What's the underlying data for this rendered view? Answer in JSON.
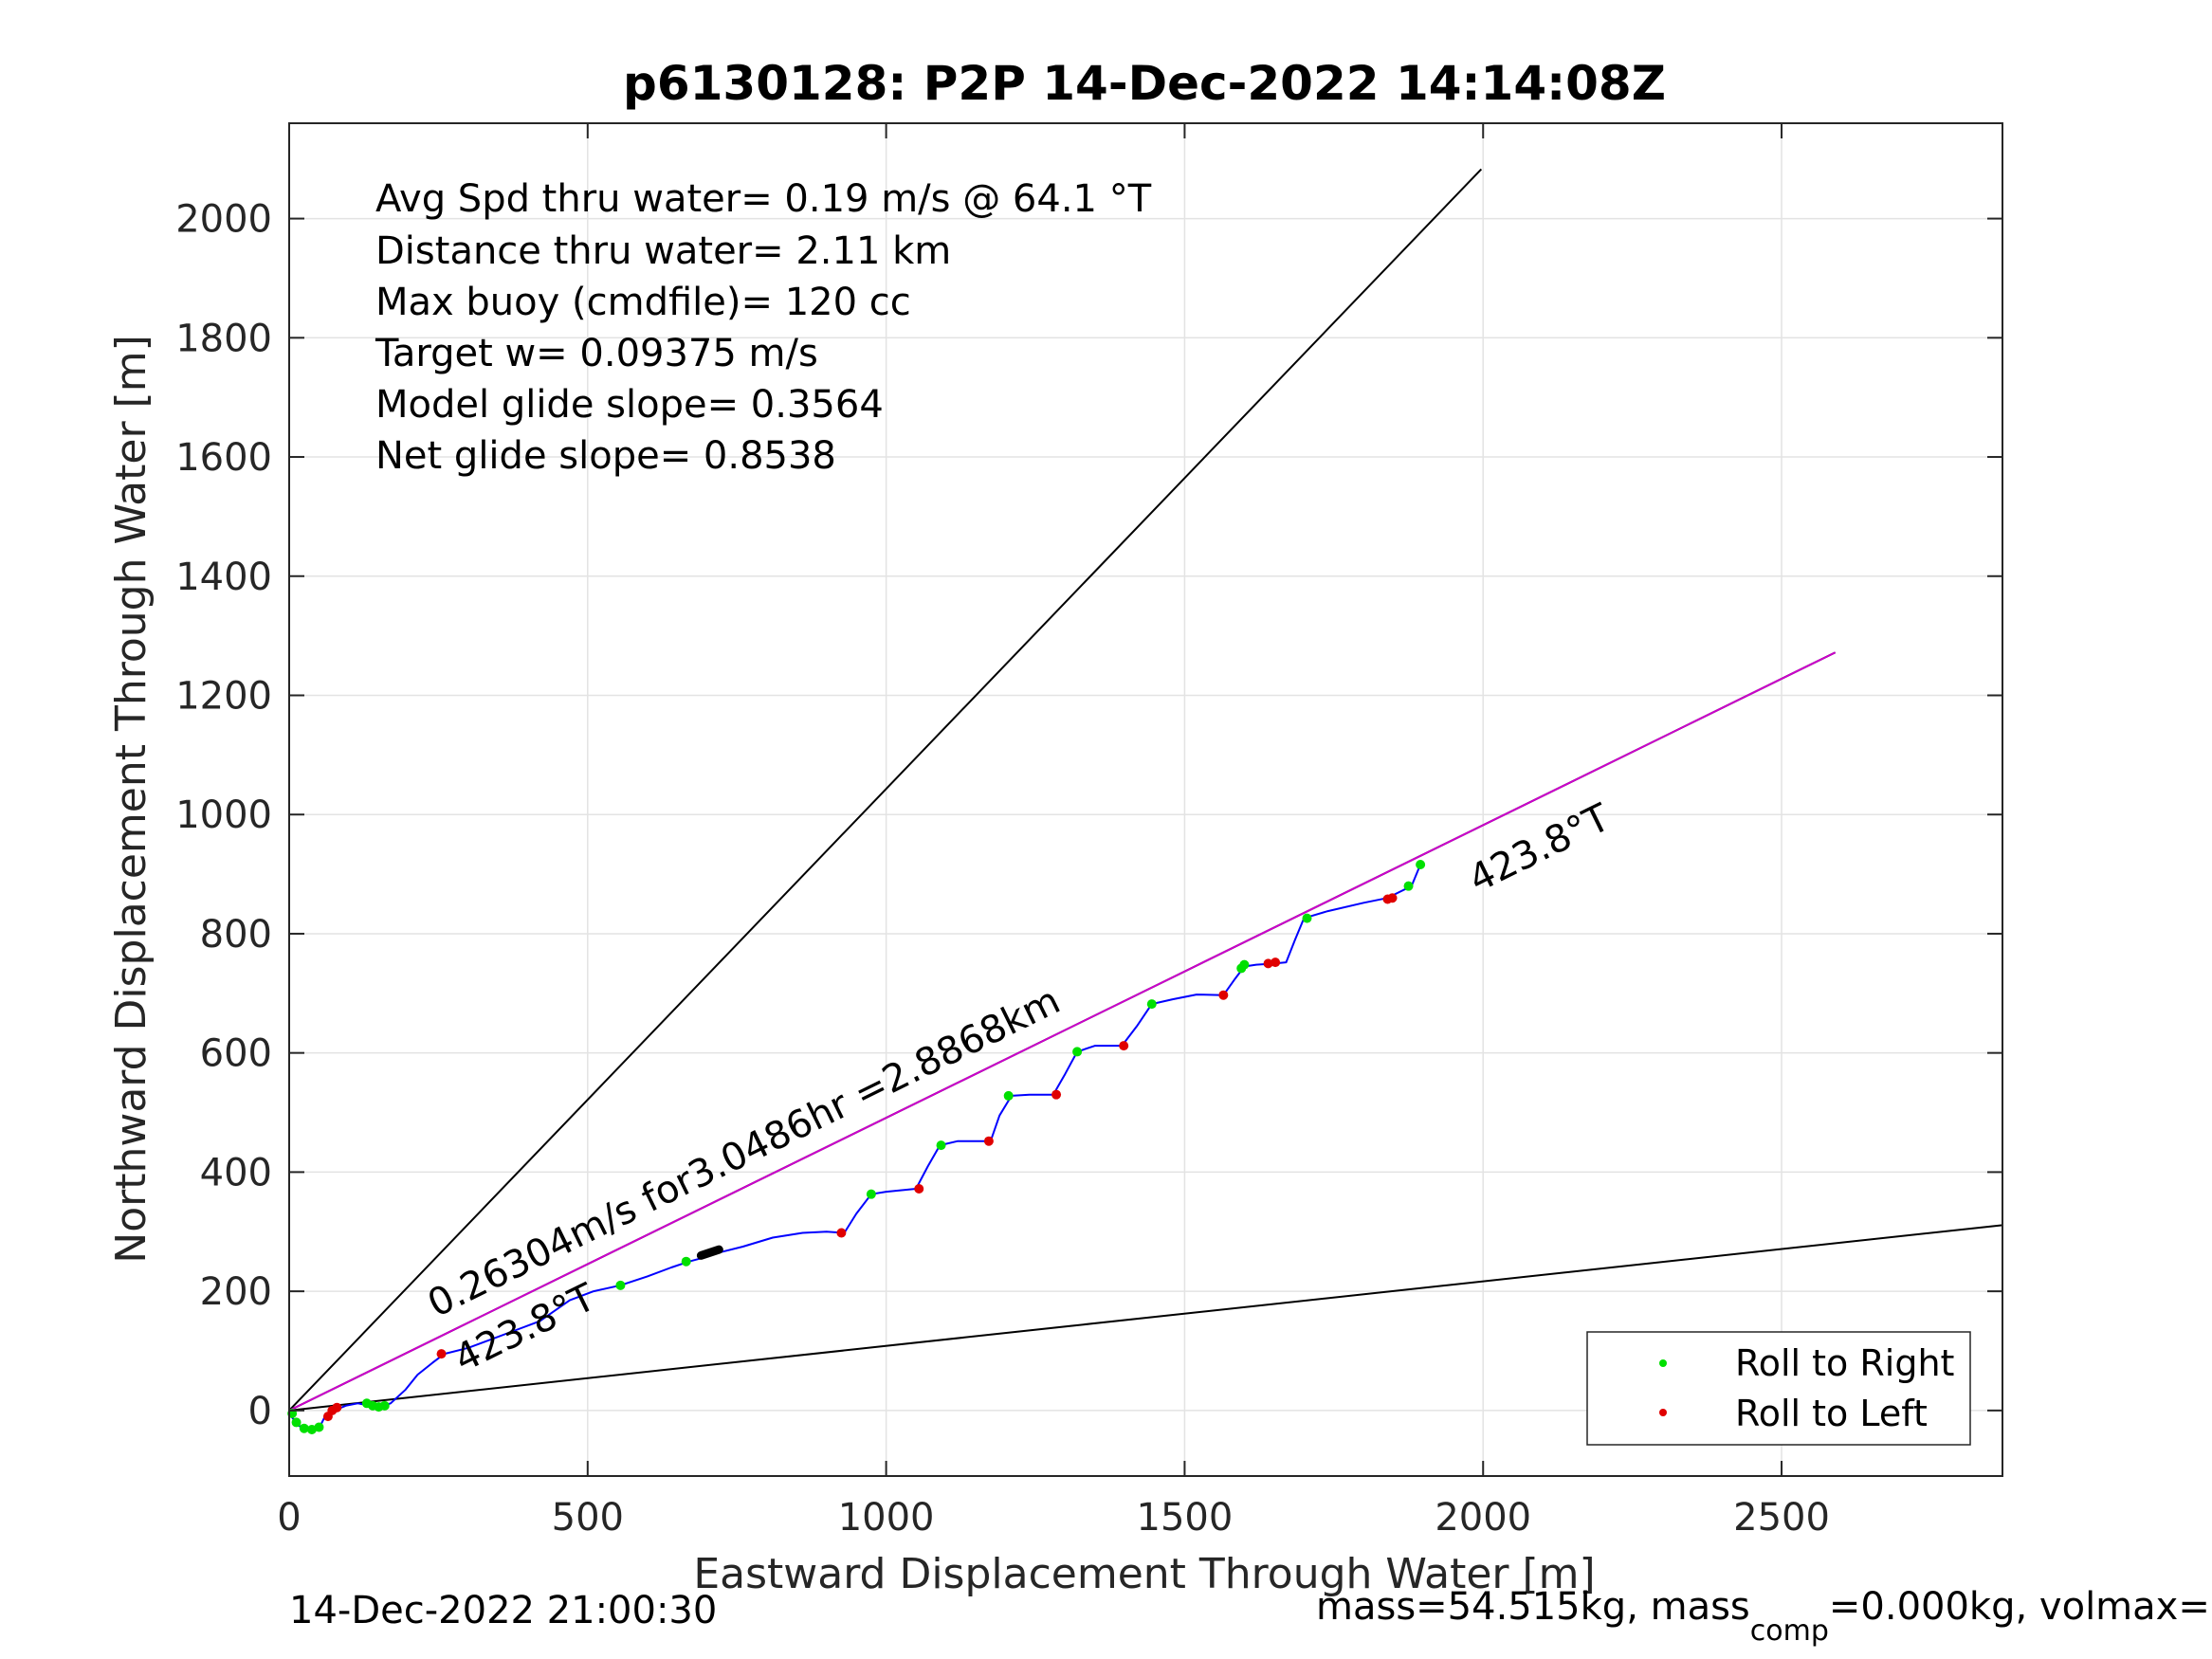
{
  "chart_data": {
    "type": "line",
    "title": "p6130128: P2P 14-Dec-2022 14:14:08Z",
    "xlabel": "Eastward Displacement Through Water [m]",
    "ylabel": "Northward Displacement Through Water [m]",
    "xlim": [
      0,
      2870
    ],
    "ylim": [
      -110,
      2160
    ],
    "xticks": [
      0,
      500,
      1000,
      1500,
      2000,
      2500
    ],
    "yticks": [
      0,
      200,
      400,
      600,
      800,
      1000,
      1200,
      1400,
      1600,
      1800,
      2000
    ],
    "grid": true,
    "legend_position": "bottom-right",
    "info_lines": [
      "Avg Spd thru water=  0.19 m/s @  64.1 °T",
      "Distance thru water=  2.11 km",
      "Max buoy (cmdfile)= 120 cc",
      "Target w= 0.09375 m/s",
      "Model glide slope= 0.3564",
      "Net glide slope= 0.8538"
    ],
    "annotations": {
      "segment_label": "0.26304m/s for3.0486hr =2.8868km",
      "heading_label_start": "423.8°T",
      "heading_label_end": "423.8°T"
    },
    "reference_lines": [
      {
        "color": "#000000",
        "x": [
          0,
          1997
        ],
        "y": [
          0,
          2083
        ]
      },
      {
        "color": "#000000",
        "x": [
          0,
          2870
        ],
        "y": [
          0,
          311
        ]
      },
      {
        "color": "#000000",
        "x": [
          0,
          2590
        ],
        "y": [
          0,
          1272
        ]
      },
      {
        "color": "#cc00cc",
        "x": [
          0,
          2590
        ],
        "y": [
          0,
          1272
        ]
      }
    ],
    "series": [
      {
        "color": "#0000ff",
        "x": [
          0,
          15,
          35,
          50,
          60,
          75,
          95,
          115,
          135,
          150,
          170,
          195,
          215,
          240,
          260,
          300,
          340,
          380,
          420,
          470,
          510,
          555,
          600,
          640,
          670,
          700,
          720,
          760,
          810,
          860,
          900,
          930,
          950,
          975,
          1000,
          1050,
          1070,
          1090,
          1120,
          1150,
          1175,
          1190,
          1210,
          1240,
          1280,
          1300,
          1320,
          1350,
          1395,
          1420,
          1445,
          1480,
          1520,
          1565,
          1585,
          1600,
          1620,
          1650,
          1670,
          1685,
          1700,
          1740,
          1800,
          1840,
          1860,
          1880,
          1895
        ],
        "y": [
          -5,
          -25,
          -35,
          -30,
          -10,
          0,
          8,
          12,
          8,
          5,
          12,
          35,
          60,
          80,
          95,
          105,
          120,
          135,
          150,
          185,
          200,
          210,
          225,
          240,
          250,
          258,
          265,
          275,
          290,
          298,
          300,
          298,
          330,
          363,
          367,
          372,
          410,
          445,
          452,
          452,
          452,
          495,
          528,
          530,
          530,
          565,
          602,
          612,
          612,
          645,
          682,
          690,
          698,
          697,
          725,
          745,
          748,
          750,
          752,
          790,
          826,
          838,
          852,
          860,
          870,
          880,
          916
        ]
      }
    ],
    "roll_right_points": {
      "color": "#00e000",
      "x": [
        5,
        12,
        25,
        38,
        50,
        130,
        140,
        150,
        160,
        555,
        665,
        975,
        1092,
        1205,
        1320,
        1445,
        1595,
        1600,
        1705,
        1875,
        1895
      ],
      "y": [
        -5,
        -20,
        -30,
        -32,
        -28,
        12,
        8,
        6,
        8,
        210,
        250,
        363,
        445,
        528,
        602,
        682,
        742,
        748,
        826,
        880,
        916
      ]
    },
    "roll_left_points": {
      "color": "#e00000",
      "x": [
        65,
        72,
        80,
        255,
        925,
        1055,
        1172,
        1285,
        1398,
        1565,
        1640,
        1652,
        1840,
        1848
      ],
      "y": [
        -10,
        0,
        5,
        95,
        298,
        372,
        452,
        530,
        612,
        697,
        750,
        752,
        858,
        860
      ]
    },
    "thick_segment": {
      "color": "#000000",
      "x": [
        690,
        720
      ],
      "y": [
        260,
        270
      ]
    },
    "legend": {
      "entries": [
        {
          "label": "Roll to Right",
          "color": "#00e000"
        },
        {
          "label": "Roll to Left",
          "color": "#e00000"
        }
      ]
    },
    "footer": {
      "timestamp": "14-Dec-2022 21:00:30",
      "mass_prefix": "mass=54.515kg, mass",
      "mass_sub": "comp",
      "mass_suffix": "=0.000kg, volmax="
    }
  }
}
